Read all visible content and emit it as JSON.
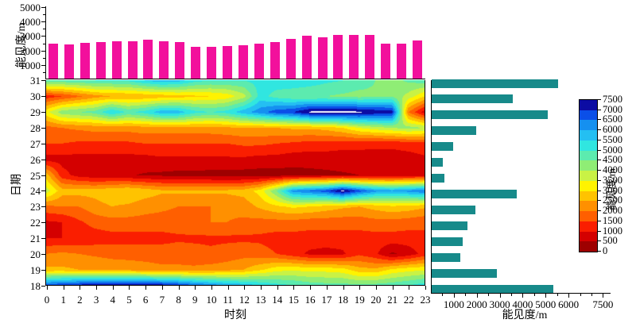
{
  "colors": {
    "top_bar": "#f2109c",
    "right_bar": "#178a8a",
    "axis": "#000000",
    "background": "#ffffff"
  },
  "palette": {
    "min": 0,
    "max": 7500,
    "bin_size": 500,
    "colors": [
      "#9e0000",
      "#d40000",
      "#fa1e00",
      "#ff5f00",
      "#ff9000",
      "#ffc300",
      "#fff300",
      "#c9f245",
      "#8fed75",
      "#5cebaf",
      "#30e6e0",
      "#24bff2",
      "#1590f0",
      "#0b4fe8",
      "#0c0ca3"
    ],
    "over_color": "#ffffff"
  },
  "chart_data": [
    {
      "id": "top_chart",
      "type": "bar",
      "orientation": "vertical",
      "ylabel": "能见度/m",
      "yticks": [
        1000,
        2000,
        3000,
        4000,
        5000
      ],
      "ylim": [
        0,
        5050
      ],
      "categories": [
        0,
        1,
        2,
        3,
        4,
        5,
        6,
        7,
        8,
        9,
        10,
        11,
        12,
        13,
        14,
        15,
        16,
        17,
        18,
        19,
        20,
        21,
        22,
        23
      ],
      "values": [
        2500,
        2400,
        2550,
        2600,
        2650,
        2650,
        2750,
        2650,
        2600,
        2250,
        2250,
        2300,
        2350,
        2450,
        2600,
        2800,
        3000,
        2900,
        3100,
        3050,
        3100,
        2500,
        2450,
        2700
      ]
    },
    {
      "id": "heatmap",
      "type": "heatmap",
      "xlabel": "时刻",
      "ylabel": "日期",
      "xticks": [
        0,
        1,
        2,
        3,
        4,
        5,
        6,
        7,
        8,
        9,
        10,
        11,
        12,
        13,
        14,
        15,
        16,
        17,
        18,
        19,
        20,
        21,
        22,
        23
      ],
      "dates": [
        31,
        30,
        29,
        28,
        27,
        26,
        25,
        24,
        23,
        22,
        21,
        20,
        19,
        18
      ],
      "values": [
        [
          4800,
          4800,
          4900,
          5000,
          5000,
          5100,
          5500,
          5800,
          5700,
          5200,
          5000,
          5000,
          5000,
          5200,
          5300,
          5400,
          5300,
          5100,
          5000,
          4800,
          4500,
          4300,
          4600,
          4800
        ],
        [
          1200,
          1500,
          1900,
          2300,
          2500,
          2500,
          2600,
          2700,
          2800,
          2900,
          3000,
          3200,
          3800,
          5200,
          4800,
          4600,
          4500,
          4500,
          4400,
          4300,
          4400,
          4400,
          3800,
          3000
        ],
        [
          3300,
          4300,
          4500,
          4700,
          5500,
          4900,
          5200,
          5800,
          5800,
          5200,
          5000,
          5200,
          5800,
          6300,
          6800,
          7000,
          7600,
          7700,
          7700,
          7600,
          7400,
          7300,
          2000,
          700
        ],
        [
          1800,
          2000,
          2100,
          2200,
          2200,
          2200,
          2300,
          2300,
          2300,
          2300,
          2300,
          2400,
          2500,
          2500,
          2500,
          2600,
          2600,
          2700,
          3000,
          3500,
          3800,
          4000,
          4200,
          4000
        ],
        [
          1500,
          1500,
          1400,
          1400,
          1400,
          1400,
          1500,
          1500,
          1500,
          1500,
          1500,
          1500,
          1600,
          1600,
          1500,
          1400,
          1300,
          1300,
          1200,
          1200,
          1100,
          1100,
          1200,
          1300
        ],
        [
          800,
          800,
          800,
          800,
          800,
          800,
          800,
          900,
          900,
          900,
          900,
          900,
          900,
          800,
          800,
          700,
          700,
          700,
          700,
          700,
          800,
          800,
          800,
          900
        ],
        [
          2800,
          1200,
          800,
          650,
          600,
          550,
          450,
          400,
          350,
          330,
          320,
          300,
          280,
          280,
          280,
          300,
          350,
          400,
          450,
          500,
          550,
          600,
          650,
          700
        ],
        [
          3800,
          2700,
          2700,
          2700,
          2900,
          3000,
          2800,
          2600,
          2600,
          2600,
          2600,
          2600,
          2700,
          3200,
          4500,
          6200,
          6500,
          6800,
          7600,
          6800,
          6200,
          6000,
          6200,
          6500
        ],
        [
          1900,
          2000,
          2000,
          2300,
          2500,
          2400,
          2200,
          2100,
          2000,
          2000,
          2000,
          2100,
          2200,
          2600,
          2900,
          3100,
          3000,
          2800,
          2600,
          2500,
          2700,
          2900,
          2800,
          2600
        ],
        [
          900,
          1000,
          1400,
          1700,
          1800,
          1800,
          1800,
          1800,
          1800,
          1900,
          2000,
          2000,
          1900,
          1800,
          1800,
          1800,
          1700,
          1700,
          1700,
          1700,
          1800,
          1800,
          1700,
          1600
        ],
        [
          1000,
          1000,
          1100,
          1200,
          1300,
          1300,
          1300,
          1300,
          1400,
          1400,
          1400,
          1400,
          1400,
          1400,
          1300,
          1300,
          1300,
          1300,
          1300,
          1300,
          1300,
          1300,
          1300,
          1400
        ],
        [
          2000,
          2100,
          2000,
          1900,
          1800,
          1800,
          1800,
          1800,
          1800,
          1700,
          1600,
          1700,
          1800,
          1700,
          1500,
          1200,
          900,
          800,
          900,
          1400,
          1100,
          400,
          700,
          1200
        ],
        [
          2600,
          2600,
          2500,
          2500,
          2400,
          2300,
          2200,
          2100,
          2100,
          2100,
          2200,
          2300,
          2500,
          2900,
          3300,
          3400,
          3300,
          3300,
          3200,
          2700,
          2600,
          3100,
          3300,
          3400
        ],
        [
          6800,
          7000,
          7200,
          7400,
          7450,
          7450,
          7450,
          7300,
          7000,
          6600,
          6300,
          6000,
          5800,
          5500,
          5200,
          5000,
          4800,
          4700,
          4700,
          4600,
          4700,
          4800,
          5000,
          5300
        ]
      ]
    },
    {
      "id": "right_chart",
      "type": "bar",
      "orientation": "horizontal",
      "xlabel": "能见度/m",
      "xtick_labels": [
        "1000",
        "2000",
        "3000",
        "4000",
        "5000",
        "6000",
        "7500"
      ],
      "xtick_values": [
        1000,
        2000,
        3000,
        4000,
        5000,
        6000,
        7500
      ],
      "xlim": [
        0,
        7800
      ],
      "categories": [
        31,
        30,
        29,
        28,
        27,
        26,
        25,
        24,
        23,
        22,
        21,
        20,
        19,
        18
      ],
      "values": [
        5500,
        3550,
        5050,
        1950,
        950,
        500,
        550,
        3700,
        1900,
        1550,
        1350,
        1250,
        2850,
        5300
      ]
    }
  ],
  "colorbar": {
    "title": "能见度/m",
    "tick_values": [
      0,
      500,
      1000,
      1500,
      2000,
      2500,
      3000,
      3500,
      4000,
      4500,
      5000,
      5500,
      6000,
      6500,
      7000,
      7500
    ]
  }
}
